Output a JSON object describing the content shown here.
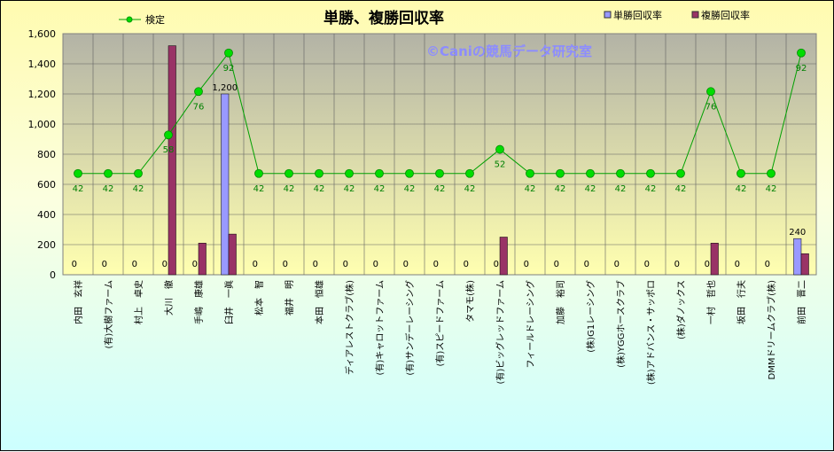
{
  "chart_data": {
    "type": "bar",
    "title": "単勝、複勝回収率",
    "watermark": "©Caniの競馬データ研究室",
    "categories": [
      "内田　玄祥",
      "(有)大樹ファーム",
      "村上　卓史",
      "大川　徹",
      "手嶋　康雄",
      "臼井　一眞",
      "松本　智",
      "福井　明",
      "本田　恒雄",
      "ディアレストクラブ(株)",
      "(有)キャロットファーム",
      "(有)サンデーレーシング",
      "(有)スピードファーム",
      "タマモ(株)",
      "(有)ビッグレッドファーム",
      "フィールドレーシング",
      "加藤　裕司",
      "(株)G1レーシング",
      "(株)YGGホースクラブ",
      "(株)アドバンス・サッポロ",
      "(株)ダノックス",
      "一村　哲也",
      "坂田　行夫",
      "DMMドリームクラブ(株)",
      "前田　晋二"
    ],
    "series": [
      {
        "name": "単勝回収率",
        "kind": "bar",
        "color": "#9999ff",
        "values": [
          0,
          0,
          0,
          0,
          0,
          1200,
          0,
          0,
          0,
          0,
          0,
          0,
          0,
          0,
          0,
          0,
          0,
          0,
          0,
          0,
          0,
          0,
          0,
          0,
          240
        ]
      },
      {
        "name": "複勝回収率",
        "kind": "bar",
        "color": "#993366",
        "values": [
          0,
          0,
          0,
          1520,
          210,
          270,
          0,
          0,
          0,
          0,
          0,
          0,
          0,
          0,
          250,
          0,
          0,
          0,
          0,
          0,
          0,
          210,
          0,
          0,
          140
        ]
      },
      {
        "name": "検定",
        "kind": "line",
        "color": "#00a000",
        "values": [
          42,
          42,
          42,
          58,
          76,
          92,
          42,
          42,
          42,
          42,
          42,
          42,
          42,
          42,
          52,
          42,
          42,
          42,
          42,
          42,
          42,
          76,
          42,
          42,
          92
        ]
      }
    ],
    "y_axis": {
      "min": 0,
      "max": 1600,
      "step": 200,
      "tick_labels": [
        "0",
        "200",
        "400",
        "600",
        "800",
        "1,000",
        "1,200",
        "1,400",
        "1,600"
      ]
    },
    "secondary_axis": {
      "min": 0,
      "max": 100
    },
    "data_labels": {
      "bar1": [
        "0",
        "0",
        "0",
        "0",
        "0",
        "1,200",
        "0",
        "0",
        "0",
        "0",
        "0",
        "0",
        "0",
        "0",
        "0",
        "0",
        "0",
        "0",
        "0",
        "0",
        "0",
        "0",
        "0",
        "0",
        "240"
      ],
      "line": [
        "42",
        "42",
        "42",
        "58",
        "76",
        "92",
        "42",
        "42",
        "42",
        "42",
        "42",
        "42",
        "42",
        "42",
        "52",
        "42",
        "42",
        "42",
        "42",
        "42",
        "42",
        "76",
        "42",
        "42",
        "92"
      ]
    },
    "legend": {
      "left": [
        "検定"
      ],
      "right": [
        "単勝回収率",
        "複勝回収率"
      ]
    },
    "grid": true,
    "colors": {
      "plot_bg_top": "#b3b3a6",
      "plot_bg_bottom": "#ffffb0",
      "bar1": "#9999ff",
      "bar2": "#993366",
      "line": "#00a000",
      "marker": "#00dd00"
    }
  }
}
